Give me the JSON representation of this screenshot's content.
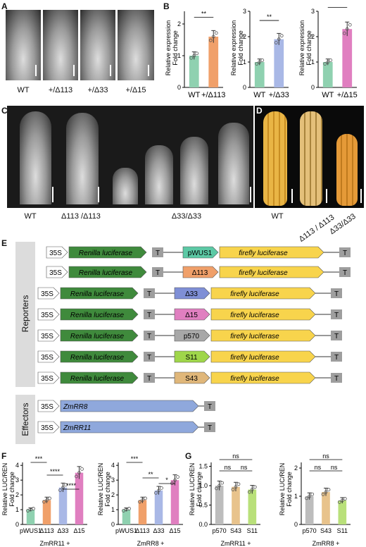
{
  "panels": [
    "A",
    "B",
    "C",
    "D",
    "E",
    "F",
    "G"
  ],
  "panelA": {
    "labels": [
      "WT",
      "+/Δ113",
      "+/Δ33",
      "+/Δ15"
    ]
  },
  "panelB": {
    "ylabel_line1": "Relative expression",
    "ylabel_line2": "Fold change",
    "charts": [
      {
        "ticks": [
          "0",
          "1",
          "2"
        ],
        "xlabels": [
          "WT",
          "+/Δ113"
        ],
        "sig": "**",
        "values": [
          1.0,
          1.6
        ]
      },
      {
        "ticks": [
          "0",
          "1",
          "2",
          "3"
        ],
        "xlabels": [
          "WT",
          "+/Δ33"
        ],
        "sig": "**",
        "values": [
          1.0,
          1.9
        ]
      },
      {
        "ticks": [
          "0",
          "1",
          "2",
          "3"
        ],
        "xlabels": [
          "WT",
          "+/Δ15"
        ],
        "sig": "****",
        "values": [
          1.0,
          2.3
        ]
      }
    ]
  },
  "panelC": {
    "labels": [
      "WT",
      "Δ113 /Δ113",
      "Δ33/Δ33"
    ]
  },
  "panelD": {
    "labels": [
      "WT",
      "Δ113 / Δ113",
      "Δ33/Δ33"
    ]
  },
  "panelE": {
    "group_reporters": "Reporters",
    "group_effectors": "Effectors",
    "promoter": "35S",
    "renilla": "Renilla luciferase",
    "firefly": "firefly luciferase",
    "terminator": "T",
    "reporters": [
      "pWUS1",
      "Δ113",
      "Δ33",
      "Δ15",
      "p570",
      "S11",
      "S43"
    ],
    "effectors": [
      "ZmRR8",
      "ZmRR11"
    ]
  },
  "panelF": {
    "ylabel_line1": "Relative LUC/REN",
    "ylabel_line2": "Fold change",
    "charts": [
      {
        "xlabels": [
          "pWUS1",
          "Δ113",
          "Δ33",
          "Δ15"
        ],
        "group": "ZmRR11 +",
        "ticks": [
          "0",
          "1",
          "2",
          "3",
          "4"
        ],
        "values": [
          1.0,
          1.65,
          2.5,
          3.5
        ],
        "sig": [
          "***",
          "****",
          "****"
        ]
      },
      {
        "xlabels": [
          "pWUS1",
          "Δ113",
          "Δ33",
          "Δ15"
        ],
        "group": "ZmRR8 +",
        "ticks": [
          "0",
          "1",
          "2",
          "3",
          "4"
        ],
        "values": [
          1.0,
          1.65,
          2.3,
          3.0
        ],
        "sig": [
          "***",
          "**",
          "*"
        ]
      }
    ]
  },
  "panelG": {
    "ylabel_line1": "Relative LUC/REN",
    "ylabel_line2": "Fold change",
    "charts": [
      {
        "xlabels": [
          "p570",
          "S43",
          "S11"
        ],
        "group": "ZmRR11 +",
        "ticks": [
          "0.0",
          "0.5",
          "1.0",
          "1.5"
        ],
        "values": [
          1.0,
          0.97,
          0.9
        ],
        "sig": [
          "ns",
          "ns",
          "ns"
        ]
      },
      {
        "xlabels": [
          "p570",
          "S43",
          "S11"
        ],
        "group": "ZmRR8 +",
        "ticks": [
          "0",
          "1",
          "2"
        ],
        "values": [
          1.0,
          1.15,
          0.85
        ],
        "sig": [
          "ns",
          "ns",
          "ns"
        ]
      }
    ]
  },
  "colors": {
    "wt": "#8fd1b0",
    "d113": "#f0a06a",
    "d33": "#a9b8e6",
    "d15": "#e07fc0",
    "grey": "#bdbdbd",
    "s43": "#e8c38c",
    "s11": "#b9e07a"
  }
}
